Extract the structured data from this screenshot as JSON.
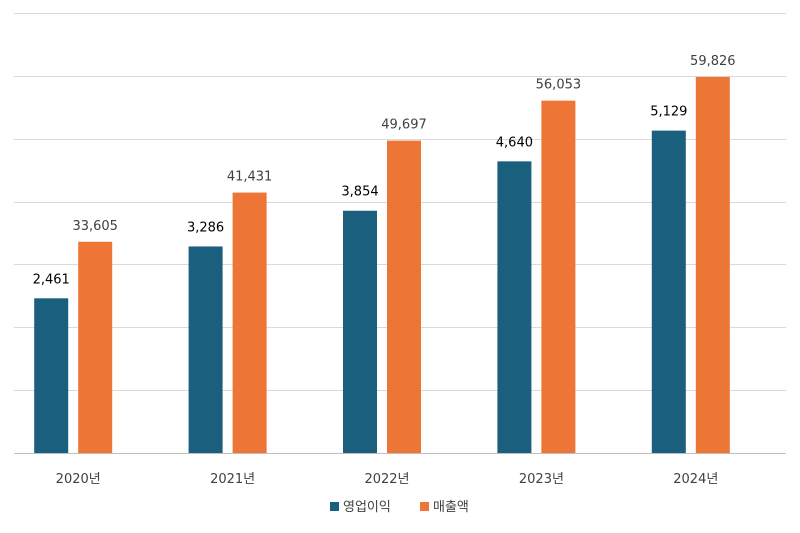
{
  "chart_data": {
    "type": "bar",
    "categories": [
      "2020년",
      "2021년",
      "2022년",
      "2023년",
      "2024년"
    ],
    "series": [
      {
        "name": "영업이익",
        "color": "#1a5f7e",
        "values": [
          2461,
          3286,
          3854,
          4640,
          5129
        ],
        "labels": [
          "2,461",
          "3,286",
          "3,854",
          "4,640",
          "5,129"
        ]
      },
      {
        "name": "매출액",
        "color": "#ed7536",
        "values": [
          33605,
          41431,
          49697,
          56053,
          59826
        ],
        "labels": [
          "33,605",
          "41,431",
          "49,697",
          "56,053",
          "59,826"
        ]
      }
    ],
    "secondary_axis_ylim": [
      0,
      7000
    ],
    "ylim": [
      0,
      70000
    ],
    "grid": true,
    "legend_position": "bottom",
    "title": "",
    "xlabel": "",
    "ylabel": ""
  }
}
